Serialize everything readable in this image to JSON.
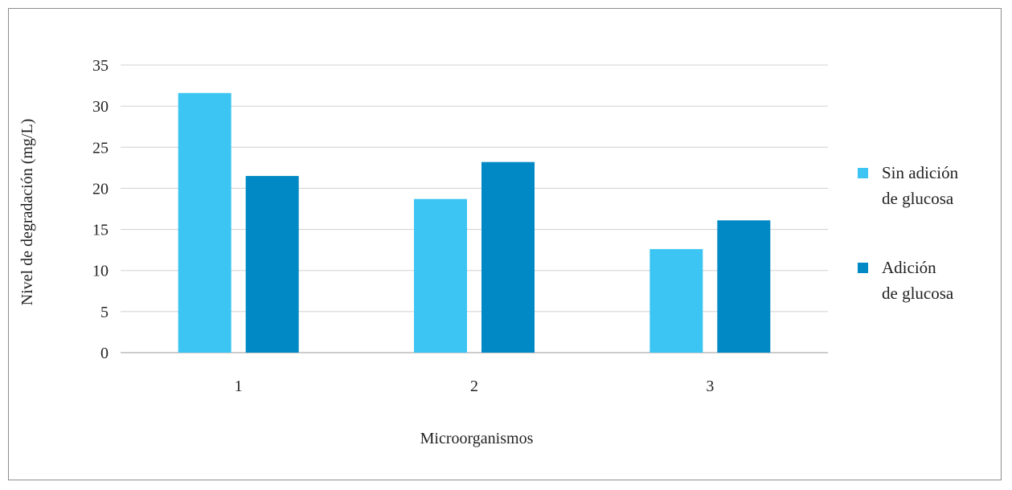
{
  "chart_data": {
    "type": "bar",
    "title": "",
    "xlabel": "Microorganismos",
    "ylabel": "Nivel de degradación (mg/L)",
    "categories": [
      "1",
      "2",
      "3"
    ],
    "ylim": [
      0,
      35
    ],
    "yticks": [
      0,
      5,
      10,
      15,
      20,
      25,
      30,
      35
    ],
    "grid": true,
    "legend_position": "right",
    "series": [
      {
        "name": "Sin adición de glucosa",
        "name_lines": [
          "Sin adición",
          "de glucosa"
        ],
        "color": "#3CC5F2",
        "values": [
          31.6,
          18.7,
          12.6
        ]
      },
      {
        "name": "Adición de glucosa",
        "name_lines": [
          "Adición",
          "de glucosa"
        ],
        "color": "#0089C4",
        "values": [
          21.5,
          23.2,
          16.1
        ]
      }
    ]
  }
}
